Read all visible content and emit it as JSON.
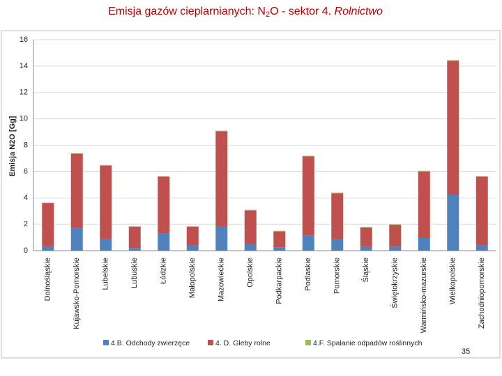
{
  "slide": {
    "title": {
      "part1": "Emisja gazów cieplarnianych: N",
      "sub": "2",
      "part2": "O - sektor 4. ",
      "italic": "Rolnictwo"
    },
    "page_number": "35"
  },
  "chart_data": {
    "type": "stacked_bar",
    "y_label": "Emisja N2O [Gg]",
    "categories": [
      "Dolnośląskie",
      "Kujawsko-Pomorskie",
      "Lubelskie",
      "Lubuskie",
      "Łódzkie",
      "Małopolskie",
      "Mazowieckie",
      "Opolskie",
      "Podkarpackie",
      "Podlaskie",
      "Pomorskie",
      "Śląskie",
      "Świętokrzyskie",
      "Warmińsko-mazurskie",
      "Wielkopolskie",
      "Zachodniopomorskie"
    ],
    "series": [
      {
        "name": "4.B. Odchody zwierzęce",
        "color": "#4f81bd",
        "values": [
          0.3,
          1.7,
          0.9,
          0.2,
          1.3,
          0.4,
          1.8,
          0.5,
          0.25,
          1.15,
          0.85,
          0.3,
          0.3,
          0.95,
          4.25,
          0.4
        ]
      },
      {
        "name": "4. D. Gleby rolne",
        "color": "#c0504d",
        "values": [
          3.3,
          5.65,
          5.55,
          1.6,
          4.3,
          1.4,
          7.25,
          2.55,
          1.2,
          6.0,
          3.5,
          1.45,
          1.65,
          5.05,
          10.15,
          5.2
        ]
      },
      {
        "name": "4.F. Spalanie odpadów roślinnych",
        "color": "#9bbb59",
        "values": [
          0.05,
          0.05,
          0.05,
          0.05,
          0.05,
          0.05,
          0.05,
          0.05,
          0.05,
          0.05,
          0.05,
          0.05,
          0.05,
          0.05,
          0.05,
          0.05
        ]
      }
    ],
    "ylim": [
      0,
      16
    ],
    "yticks": [
      0,
      2,
      4,
      6,
      8,
      10,
      12,
      14,
      16
    ],
    "grid": true
  }
}
